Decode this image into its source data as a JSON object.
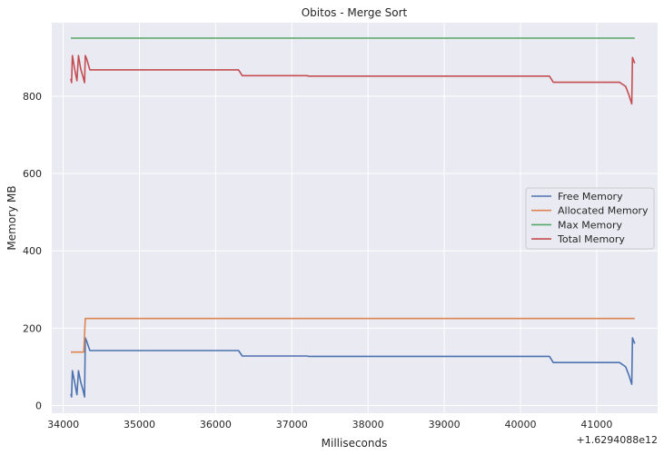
{
  "chart_data": {
    "type": "line",
    "title": "Obitos - Merge Sort",
    "xlabel": "Milliseconds",
    "ylabel": "Memory MB",
    "x_offset_label": "+1.6294088e12",
    "xlim": [
      33850,
      41800
    ],
    "ylim": [
      -20,
      990
    ],
    "xticks": [
      34000,
      35000,
      36000,
      37000,
      38000,
      39000,
      40000,
      41000
    ],
    "yticks": [
      0,
      200,
      400,
      600,
      800
    ],
    "grid": true,
    "legend_position": "center-right",
    "series": [
      {
        "name": "Free Memory",
        "color": "#4c72b0",
        "points": [
          [
            34100,
            30
          ],
          [
            34110,
            22
          ],
          [
            34120,
            90
          ],
          [
            34150,
            60
          ],
          [
            34180,
            28
          ],
          [
            34200,
            90
          ],
          [
            34230,
            60
          ],
          [
            34260,
            40
          ],
          [
            34280,
            22
          ],
          [
            34290,
            175
          ],
          [
            34310,
            165
          ],
          [
            34350,
            142
          ],
          [
            36300,
            142
          ],
          [
            36350,
            128
          ],
          [
            37200,
            128
          ],
          [
            37220,
            127
          ],
          [
            40380,
            127
          ],
          [
            40430,
            111
          ],
          [
            41300,
            111
          ],
          [
            41380,
            100
          ],
          [
            41420,
            80
          ],
          [
            41460,
            55
          ],
          [
            41470,
            175
          ],
          [
            41500,
            160
          ]
        ]
      },
      {
        "name": "Allocated Memory",
        "color": "#dd8452",
        "points": [
          [
            34100,
            138
          ],
          [
            34270,
            138
          ],
          [
            34290,
            225
          ],
          [
            41500,
            225
          ]
        ]
      },
      {
        "name": "Max Memory",
        "color": "#55a868",
        "points": [
          [
            34100,
            950
          ],
          [
            41500,
            950
          ]
        ]
      },
      {
        "name": "Total Memory",
        "color": "#c44e52",
        "points": [
          [
            34100,
            845
          ],
          [
            34110,
            835
          ],
          [
            34120,
            905
          ],
          [
            34150,
            870
          ],
          [
            34180,
            840
          ],
          [
            34200,
            905
          ],
          [
            34230,
            870
          ],
          [
            34260,
            850
          ],
          [
            34280,
            835
          ],
          [
            34290,
            905
          ],
          [
            34310,
            895
          ],
          [
            34350,
            868
          ],
          [
            36300,
            868
          ],
          [
            36350,
            853
          ],
          [
            37200,
            853
          ],
          [
            37220,
            852
          ],
          [
            40380,
            852
          ],
          [
            40430,
            836
          ],
          [
            41300,
            836
          ],
          [
            41380,
            825
          ],
          [
            41420,
            805
          ],
          [
            41460,
            780
          ],
          [
            41470,
            900
          ],
          [
            41500,
            885
          ]
        ]
      }
    ]
  }
}
